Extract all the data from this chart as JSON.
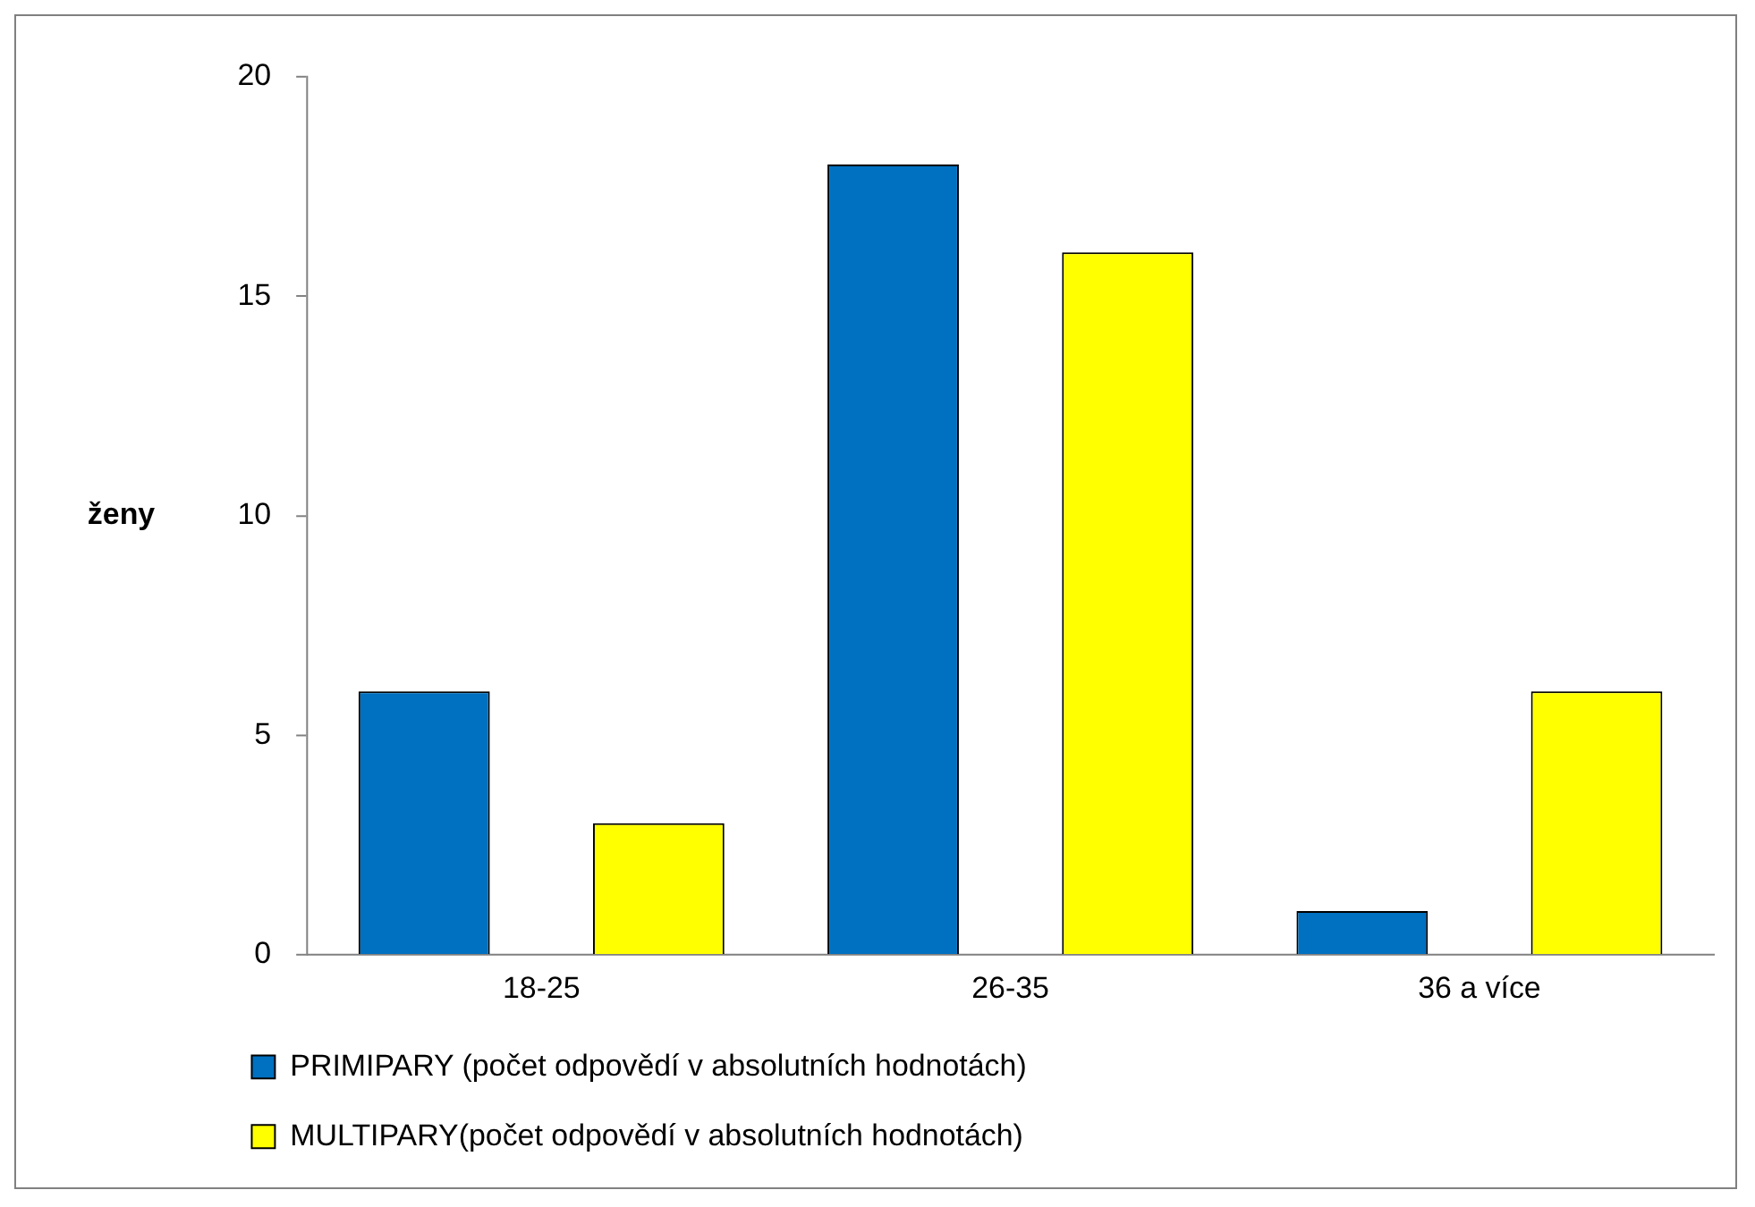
{
  "chart_data": {
    "type": "bar",
    "ylabel": "ženy",
    "categories": [
      "18-25",
      "26-35",
      "36 a více"
    ],
    "series": [
      {
        "name": "PRIMIPARY (počet odpovědí v absolutních hodnotách)",
        "color": "#0070c0",
        "values": [
          6,
          18,
          1
        ]
      },
      {
        "name": "MULTIPARY(počet odpovědí v absolutních hodnotách)",
        "color": "#ffff00",
        "values": [
          3,
          16,
          6
        ]
      }
    ],
    "ylim": [
      0,
      20
    ],
    "yticks": [
      0,
      5,
      10,
      15,
      20
    ],
    "grid": false,
    "legend": "bottom"
  }
}
